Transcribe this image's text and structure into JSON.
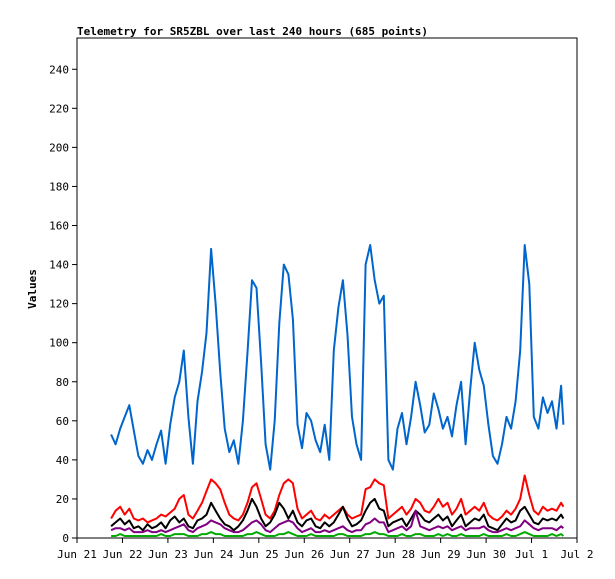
{
  "chart_data": {
    "type": "line",
    "title": "Telemetry for SR5ZBL over last 240 hours (685 points)",
    "ylabel": "Values",
    "xlabel": "",
    "ylim": [
      0,
      256
    ],
    "xlim": [
      0,
      11
    ],
    "yticks": [
      0,
      20,
      40,
      60,
      80,
      100,
      120,
      140,
      160,
      180,
      200,
      220,
      240
    ],
    "xticks": [
      {
        "label": "Jun 21",
        "value": 0
      },
      {
        "label": "Jun 22",
        "value": 1
      },
      {
        "label": "Jun 23",
        "value": 2
      },
      {
        "label": "Jun 24",
        "value": 3
      },
      {
        "label": "Jun 25",
        "value": 4
      },
      {
        "label": "Jun 26",
        "value": 5
      },
      {
        "label": "Jun 27",
        "value": 6
      },
      {
        "label": "Jun 28",
        "value": 7
      },
      {
        "label": "Jun 29",
        "value": 8
      },
      {
        "label": "Jun 30",
        "value": 9
      },
      {
        "label": "Jul 1",
        "value": 10
      },
      {
        "label": "Jul 2",
        "value": 11
      }
    ],
    "series": [
      {
        "color": "#0066cc",
        "x": [
          0.75,
          0.85,
          0.95,
          1.05,
          1.15,
          1.25,
          1.35,
          1.45,
          1.55,
          1.65,
          1.75,
          1.85,
          1.95,
          2.05,
          2.15,
          2.25,
          2.35,
          2.45,
          2.55,
          2.65,
          2.75,
          2.85,
          2.95,
          3.05,
          3.15,
          3.25,
          3.35,
          3.45,
          3.55,
          3.65,
          3.75,
          3.85,
          3.95,
          4.05,
          4.15,
          4.25,
          4.35,
          4.45,
          4.55,
          4.65,
          4.75,
          4.85,
          4.95,
          5.05,
          5.15,
          5.25,
          5.35,
          5.45,
          5.55,
          5.65,
          5.75,
          5.85,
          5.95,
          6.05,
          6.15,
          6.25,
          6.35,
          6.45,
          6.55,
          6.65,
          6.75,
          6.85,
          6.95,
          7.05,
          7.15,
          7.25,
          7.35,
          7.45,
          7.55,
          7.65,
          7.75,
          7.85,
          7.95,
          8.05,
          8.15,
          8.25,
          8.35,
          8.45,
          8.55,
          8.65,
          8.75,
          8.85,
          8.95,
          9.05,
          9.15,
          9.25,
          9.35,
          9.45,
          9.55,
          9.65,
          9.75,
          9.85,
          9.95,
          10.05,
          10.15,
          10.25,
          10.35,
          10.45,
          10.55,
          10.65,
          10.7
        ],
        "values": [
          53,
          48,
          56,
          62,
          68,
          55,
          42,
          38,
          45,
          40,
          48,
          55,
          38,
          58,
          72,
          80,
          96,
          62,
          38,
          70,
          85,
          105,
          148,
          120,
          85,
          56,
          44,
          50,
          38,
          60,
          95,
          132,
          128,
          90,
          48,
          35,
          60,
          110,
          140,
          135,
          112,
          58,
          46,
          64,
          60,
          50,
          44,
          58,
          40,
          96,
          118,
          132,
          104,
          62,
          48,
          40,
          140,
          150,
          132,
          120,
          124,
          40,
          35,
          56,
          64,
          48,
          62,
          80,
          68,
          54,
          58,
          74,
          66,
          56,
          62,
          52,
          68,
          80,
          48,
          76,
          100,
          86,
          78,
          58,
          42,
          38,
          48,
          62,
          56,
          70,
          96,
          150,
          130,
          62,
          56,
          72,
          64,
          70,
          56,
          78,
          58
        ]
      },
      {
        "color": "#ff0000",
        "x": [
          0.75,
          0.85,
          0.95,
          1.05,
          1.15,
          1.25,
          1.35,
          1.45,
          1.55,
          1.65,
          1.75,
          1.85,
          1.95,
          2.05,
          2.15,
          2.25,
          2.35,
          2.45,
          2.55,
          2.65,
          2.75,
          2.85,
          2.95,
          3.05,
          3.15,
          3.25,
          3.35,
          3.45,
          3.55,
          3.65,
          3.75,
          3.85,
          3.95,
          4.05,
          4.15,
          4.25,
          4.35,
          4.45,
          4.55,
          4.65,
          4.75,
          4.85,
          4.95,
          5.05,
          5.15,
          5.25,
          5.35,
          5.45,
          5.55,
          5.65,
          5.75,
          5.85,
          5.95,
          6.05,
          6.15,
          6.25,
          6.35,
          6.45,
          6.55,
          6.65,
          6.75,
          6.85,
          6.95,
          7.05,
          7.15,
          7.25,
          7.35,
          7.45,
          7.55,
          7.65,
          7.75,
          7.85,
          7.95,
          8.05,
          8.15,
          8.25,
          8.35,
          8.45,
          8.55,
          8.65,
          8.75,
          8.85,
          8.95,
          9.05,
          9.15,
          9.25,
          9.35,
          9.45,
          9.55,
          9.65,
          9.75,
          9.85,
          9.95,
          10.05,
          10.15,
          10.25,
          10.35,
          10.45,
          10.55,
          10.65,
          10.7
        ],
        "values": [
          10,
          14,
          16,
          12,
          15,
          10,
          9,
          10,
          8,
          9,
          10,
          12,
          11,
          13,
          15,
          20,
          22,
          12,
          10,
          14,
          18,
          24,
          30,
          28,
          25,
          18,
          12,
          10,
          9,
          12,
          18,
          26,
          28,
          20,
          12,
          10,
          14,
          22,
          28,
          30,
          28,
          15,
          10,
          12,
          14,
          10,
          9,
          12,
          10,
          12,
          14,
          16,
          12,
          10,
          11,
          12,
          25,
          26,
          30,
          28,
          27,
          10,
          12,
          14,
          16,
          12,
          15,
          20,
          18,
          14,
          13,
          16,
          20,
          16,
          18,
          12,
          15,
          20,
          12,
          14,
          16,
          14,
          18,
          12,
          10,
          9,
          11,
          14,
          12,
          15,
          20,
          32,
          22,
          14,
          12,
          16,
          14,
          15,
          14,
          18,
          16
        ]
      },
      {
        "color": "#000000",
        "x": [
          0.75,
          0.85,
          0.95,
          1.05,
          1.15,
          1.25,
          1.35,
          1.45,
          1.55,
          1.65,
          1.75,
          1.85,
          1.95,
          2.05,
          2.15,
          2.25,
          2.35,
          2.45,
          2.55,
          2.65,
          2.75,
          2.85,
          2.95,
          3.05,
          3.15,
          3.25,
          3.35,
          3.45,
          3.55,
          3.65,
          3.75,
          3.85,
          3.95,
          4.05,
          4.15,
          4.25,
          4.35,
          4.45,
          4.55,
          4.65,
          4.75,
          4.85,
          4.95,
          5.05,
          5.15,
          5.25,
          5.35,
          5.45,
          5.55,
          5.65,
          5.75,
          5.85,
          5.95,
          6.05,
          6.15,
          6.25,
          6.35,
          6.45,
          6.55,
          6.65,
          6.75,
          6.85,
          6.95,
          7.05,
          7.15,
          7.25,
          7.35,
          7.45,
          7.55,
          7.65,
          7.75,
          7.85,
          7.95,
          8.05,
          8.15,
          8.25,
          8.35,
          8.45,
          8.55,
          8.65,
          8.75,
          8.85,
          8.95,
          9.05,
          9.15,
          9.25,
          9.35,
          9.45,
          9.55,
          9.65,
          9.75,
          9.85,
          9.95,
          10.05,
          10.15,
          10.25,
          10.35,
          10.45,
          10.55,
          10.65,
          10.7
        ],
        "values": [
          6,
          8,
          10,
          7,
          9,
          5,
          6,
          4,
          7,
          5,
          6,
          8,
          5,
          9,
          11,
          8,
          10,
          6,
          5,
          9,
          10,
          12,
          18,
          14,
          10,
          7,
          6,
          4,
          6,
          9,
          14,
          20,
          16,
          10,
          6,
          8,
          12,
          18,
          15,
          10,
          14,
          8,
          6,
          9,
          10,
          6,
          5,
          8,
          6,
          8,
          12,
          16,
          10,
          6,
          7,
          9,
          14,
          18,
          20,
          15,
          14,
          6,
          8,
          9,
          10,
          6,
          10,
          14,
          12,
          9,
          8,
          10,
          12,
          9,
          11,
          6,
          9,
          12,
          6,
          8,
          10,
          9,
          12,
          6,
          5,
          4,
          7,
          10,
          8,
          9,
          14,
          16,
          12,
          8,
          7,
          10,
          9,
          10,
          9,
          12,
          10
        ]
      },
      {
        "color": "#800080",
        "x": [
          0.75,
          0.85,
          0.95,
          1.05,
          1.15,
          1.25,
          1.35,
          1.45,
          1.55,
          1.65,
          1.75,
          1.85,
          1.95,
          2.05,
          2.15,
          2.25,
          2.35,
          2.45,
          2.55,
          2.65,
          2.75,
          2.85,
          2.95,
          3.05,
          3.15,
          3.25,
          3.35,
          3.45,
          3.55,
          3.65,
          3.75,
          3.85,
          3.95,
          4.05,
          4.15,
          4.25,
          4.35,
          4.45,
          4.55,
          4.65,
          4.75,
          4.85,
          4.95,
          5.05,
          5.15,
          5.25,
          5.35,
          5.45,
          5.55,
          5.65,
          5.75,
          5.85,
          5.95,
          6.05,
          6.15,
          6.25,
          6.35,
          6.45,
          6.55,
          6.65,
          6.75,
          6.85,
          6.95,
          7.05,
          7.15,
          7.25,
          7.35,
          7.45,
          7.55,
          7.65,
          7.75,
          7.85,
          7.95,
          8.05,
          8.15,
          8.25,
          8.35,
          8.45,
          8.55,
          8.65,
          8.75,
          8.85,
          8.95,
          9.05,
          9.15,
          9.25,
          9.35,
          9.45,
          9.55,
          9.65,
          9.75,
          9.85,
          9.95,
          10.05,
          10.15,
          10.25,
          10.35,
          10.45,
          10.55,
          10.65,
          10.7
        ],
        "values": [
          4,
          5,
          5,
          4,
          5,
          3,
          3,
          3,
          4,
          3,
          3,
          4,
          3,
          4,
          5,
          6,
          7,
          4,
          3,
          5,
          6,
          7,
          9,
          8,
          7,
          5,
          4,
          3,
          3,
          4,
          6,
          8,
          9,
          7,
          4,
          3,
          5,
          7,
          8,
          9,
          8,
          5,
          3,
          4,
          5,
          3,
          3,
          4,
          3,
          4,
          5,
          6,
          4,
          3,
          4,
          4,
          7,
          8,
          10,
          8,
          8,
          3,
          4,
          5,
          6,
          4,
          6,
          14,
          6,
          5,
          4,
          5,
          6,
          5,
          6,
          4,
          5,
          6,
          4,
          5,
          5,
          5,
          6,
          4,
          3,
          3,
          4,
          5,
          4,
          5,
          6,
          9,
          7,
          5,
          4,
          5,
          5,
          5,
          4,
          6,
          5
        ]
      },
      {
        "color": "#00aa00",
        "x": [
          0.75,
          0.85,
          0.95,
          1.05,
          1.15,
          1.25,
          1.35,
          1.45,
          1.55,
          1.65,
          1.75,
          1.85,
          1.95,
          2.05,
          2.15,
          2.25,
          2.35,
          2.45,
          2.55,
          2.65,
          2.75,
          2.85,
          2.95,
          3.05,
          3.15,
          3.25,
          3.35,
          3.45,
          3.55,
          3.65,
          3.75,
          3.85,
          3.95,
          4.05,
          4.15,
          4.25,
          4.35,
          4.45,
          4.55,
          4.65,
          4.75,
          4.85,
          4.95,
          5.05,
          5.15,
          5.25,
          5.35,
          5.45,
          5.55,
          5.65,
          5.75,
          5.85,
          5.95,
          6.05,
          6.15,
          6.25,
          6.35,
          6.45,
          6.55,
          6.65,
          6.75,
          6.85,
          6.95,
          7.05,
          7.15,
          7.25,
          7.35,
          7.45,
          7.55,
          7.65,
          7.75,
          7.85,
          7.95,
          8.05,
          8.15,
          8.25,
          8.35,
          8.45,
          8.55,
          8.65,
          8.75,
          8.85,
          8.95,
          9.05,
          9.15,
          9.25,
          9.35,
          9.45,
          9.55,
          9.65,
          9.75,
          9.85,
          9.95,
          10.05,
          10.15,
          10.25,
          10.35,
          10.45,
          10.55,
          10.65,
          10.7
        ],
        "values": [
          1,
          1,
          2,
          1,
          1,
          1,
          1,
          1,
          1,
          1,
          1,
          2,
          1,
          1,
          2,
          2,
          2,
          1,
          1,
          1,
          2,
          2,
          3,
          2,
          2,
          1,
          1,
          1,
          1,
          1,
          2,
          2,
          3,
          2,
          1,
          1,
          1,
          2,
          2,
          3,
          2,
          1,
          1,
          1,
          2,
          1,
          1,
          1,
          1,
          1,
          2,
          2,
          1,
          1,
          1,
          1,
          2,
          2,
          3,
          2,
          2,
          1,
          1,
          1,
          2,
          1,
          1,
          2,
          2,
          1,
          1,
          1,
          2,
          1,
          2,
          1,
          1,
          2,
          1,
          1,
          1,
          1,
          2,
          1,
          1,
          1,
          1,
          2,
          1,
          1,
          2,
          3,
          2,
          1,
          1,
          1,
          1,
          2,
          1,
          2,
          1
        ]
      }
    ]
  }
}
